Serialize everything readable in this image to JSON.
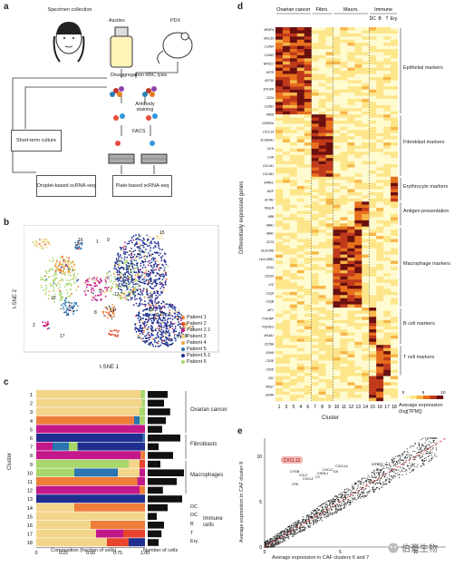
{
  "panel_labels": {
    "a": "a",
    "b": "b",
    "c": "c",
    "d": "d",
    "e": "e"
  },
  "workflow": {
    "specimen": "Specimen collection",
    "ascites": "Ascites",
    "pdx": "PDX",
    "disaggregation": "Disaggregation RBC lysis",
    "antibody": "Antibody staining",
    "facs": "FACS",
    "short_term": "Short-term culture",
    "droplet": "Droplet-based scRNA-seq",
    "plate": "Plate-based scRNA-seq"
  },
  "tsne": {
    "xlabel": "t-SNE 1",
    "ylabel": "t-SNE 2",
    "legend": [
      {
        "name": "Patient 1",
        "color": "#ef7d3a"
      },
      {
        "name": "Patient 2",
        "color": "#e8452e"
      },
      {
        "name": "Patient 2.1",
        "color": "#c2188a"
      },
      {
        "name": "Patient 3",
        "color": "#f3d58a"
      },
      {
        "name": "Patient 4",
        "color": "#f0a340"
      },
      {
        "name": "Patient 5",
        "color": "#2a74b0"
      },
      {
        "name": "Patient 5.1",
        "color": "#1f2f91"
      },
      {
        "name": "Patient 6",
        "color": "#a7d66a"
      }
    ],
    "cluster_labels": [
      "1",
      "2",
      "3",
      "4",
      "5",
      "6",
      "7",
      "8",
      "9",
      "10",
      "11",
      "12",
      "13",
      "14",
      "15",
      "16",
      "17",
      "18"
    ]
  },
  "composition": {
    "xlabel": "Composition (fraction of cells)",
    "xticks": [
      "0",
      "0.25",
      "0.50",
      "0.75",
      "1.00"
    ],
    "ylabel": "Cluster",
    "count_xlabel": "Number of cells",
    "rows": [
      {
        "cluster": "1",
        "segments": [
          [
            0.96,
            "#f3d58a"
          ],
          [
            0.04,
            "#a7d66a"
          ]
        ],
        "count": 0.55
      },
      {
        "cluster": "2",
        "segments": [
          [
            0.97,
            "#f3d58a"
          ],
          [
            0.03,
            "#a7d66a"
          ]
        ],
        "count": 0.45
      },
      {
        "cluster": "3",
        "segments": [
          [
            0.95,
            "#f3d58a"
          ],
          [
            0.05,
            "#a7d66a"
          ]
        ],
        "count": 0.62
      },
      {
        "cluster": "4",
        "segments": [
          [
            0.9,
            "#ef7d3a"
          ],
          [
            0.05,
            "#2a74b0"
          ],
          [
            0.05,
            "#a7d66a"
          ]
        ],
        "count": 0.5
      },
      {
        "cluster": "5",
        "segments": [
          [
            1.0,
            "#c2188a"
          ]
        ],
        "count": 0.4
      },
      {
        "cluster": "6",
        "segments": [
          [
            0.98,
            "#1f2f91"
          ],
          [
            0.02,
            "#2a74b0"
          ]
        ],
        "count": 0.9
      },
      {
        "cluster": "7",
        "segments": [
          [
            0.15,
            "#c2188a"
          ],
          [
            0.15,
            "#2a74b0"
          ],
          [
            0.08,
            "#a7d66a"
          ],
          [
            0.62,
            "#1f2f91"
          ]
        ],
        "count": 0.3
      },
      {
        "cluster": "8",
        "segments": [
          [
            0.96,
            "#c2188a"
          ],
          [
            0.04,
            "#ef7d3a"
          ]
        ],
        "count": 0.7
      },
      {
        "cluster": "9",
        "segments": [
          [
            0.85,
            "#a7d66a"
          ],
          [
            0.1,
            "#f3d58a"
          ],
          [
            0.05,
            "#e8452e"
          ]
        ],
        "count": 0.35
      },
      {
        "cluster": "10",
        "segments": [
          [
            0.35,
            "#a7d66a"
          ],
          [
            0.4,
            "#2a74b0"
          ],
          [
            0.2,
            "#f3d58a"
          ],
          [
            0.05,
            "#c2188a"
          ]
        ],
        "count": 1.0
      },
      {
        "cluster": "11",
        "segments": [
          [
            0.93,
            "#ef7d3a"
          ],
          [
            0.07,
            "#c2188a"
          ]
        ],
        "count": 0.8
      },
      {
        "cluster": "12",
        "segments": [
          [
            0.95,
            "#c2188a"
          ],
          [
            0.05,
            "#ef7d3a"
          ]
        ],
        "count": 0.42
      },
      {
        "cluster": "13",
        "segments": [
          [
            1.0,
            "#1f2f91"
          ]
        ],
        "count": 0.95
      },
      {
        "cluster": "14",
        "segments": [
          [
            0.35,
            "#f3d58a"
          ],
          [
            0.65,
            "#ef7d3a"
          ]
        ],
        "count": 0.55
      },
      {
        "cluster": "15",
        "segments": [
          [
            1.0,
            "#f3d58a"
          ]
        ],
        "count": 0.25
      },
      {
        "cluster": "16",
        "segments": [
          [
            0.5,
            "#f3d58a"
          ],
          [
            0.5,
            "#ef7d3a"
          ]
        ],
        "count": 0.45
      },
      {
        "cluster": "17",
        "segments": [
          [
            0.55,
            "#f3d58a"
          ],
          [
            0.25,
            "#c2188a"
          ],
          [
            0.2,
            "#e8452e"
          ]
        ],
        "count": 0.38
      },
      {
        "cluster": "18",
        "segments": [
          [
            0.65,
            "#f3d58a"
          ],
          [
            0.2,
            "#e8452e"
          ],
          [
            0.15,
            "#1f2f91"
          ]
        ],
        "count": 0.3
      }
    ],
    "groups": [
      {
        "label": "Ovarian cancer",
        "rows": [
          0,
          4
        ]
      },
      {
        "label": "Fibroblasts",
        "rows": [
          5,
          7
        ]
      },
      {
        "label": "Macrophages",
        "rows": [
          8,
          11
        ]
      }
    ],
    "immune": {
      "label": "Immune cells",
      "items": [
        "DC",
        "DC",
        "B",
        "T",
        "Ery."
      ]
    }
  },
  "heatmap": {
    "ylabel": "Differentially expressed genes",
    "xlabel": "Cluster",
    "col_groups": [
      "Ovarian cancer",
      "Fibro.",
      "Macro.",
      "Immune"
    ],
    "immune_sub": [
      "DC",
      "B",
      "T",
      "Ery."
    ],
    "col_labels": [
      "1",
      "3",
      "5",
      "4",
      "6",
      "7",
      "8",
      "9",
      "10",
      "11",
      "12",
      "13",
      "14",
      "15",
      "16",
      "17",
      "18"
    ],
    "markers": [
      "Epithelial markers",
      "Fibroblast markers",
      "Erythrocyte markers",
      "Antigen presentation",
      "Macrophage markers",
      "B cell markers",
      "T cell markers"
    ],
    "colorbar_title": "Average expression (log[TPM])",
    "colorbar_ticks": [
      "0",
      "5",
      "10"
    ],
    "genes": [
      "MFAP4",
      "MUC16",
      "CLDN4",
      "CLDN3",
      "WFDC2",
      "KRT8",
      "KRT18",
      "EPCAM",
      "CD24",
      "CLDN1",
      "PAX8",
      "CDKN2A",
      "CXCL14",
      "SCGB2A1",
      "DCN",
      "LUM",
      "COL1A1",
      "COL3A1",
      "SPARC",
      "MGP",
      "ACTA2",
      "TAGLN",
      "HBB",
      "HBA1",
      "HBA2",
      "CD74",
      "HLA-DRA",
      "HLA-DRB1",
      "CD14",
      "CD163",
      "LYZ",
      "C1QA",
      "C1QB",
      "AIF1",
      "TYROBP",
      "FCER1G",
      "MS4A1",
      "CD79A",
      "IGHM",
      "CD3E",
      "CD3D",
      "CD2",
      "NKG7",
      "GZMA"
    ]
  },
  "scatter": {
    "xlabel": "Average expression in CAF clusters 6 and 7",
    "ylabel": "Average expression in CAF cluster 8",
    "xticks": [
      "0",
      "5",
      "10"
    ],
    "yticks": [
      "0",
      "5",
      "10"
    ],
    "highlight": "CXCL12",
    "genes": [
      "CXCL14",
      "CCL2",
      "CXCL2",
      "IL6",
      "CYGB",
      "C3",
      "IGFBP7",
      "CHI3L1",
      "CFD",
      "CXCL1"
    ]
  },
  "watermark": "伯豪生物",
  "colors": {
    "accent": "#c0392b",
    "heat_low": "#fff7b0",
    "heat_mid": "#f08c1e",
    "heat_high": "#5a0d0d"
  }
}
